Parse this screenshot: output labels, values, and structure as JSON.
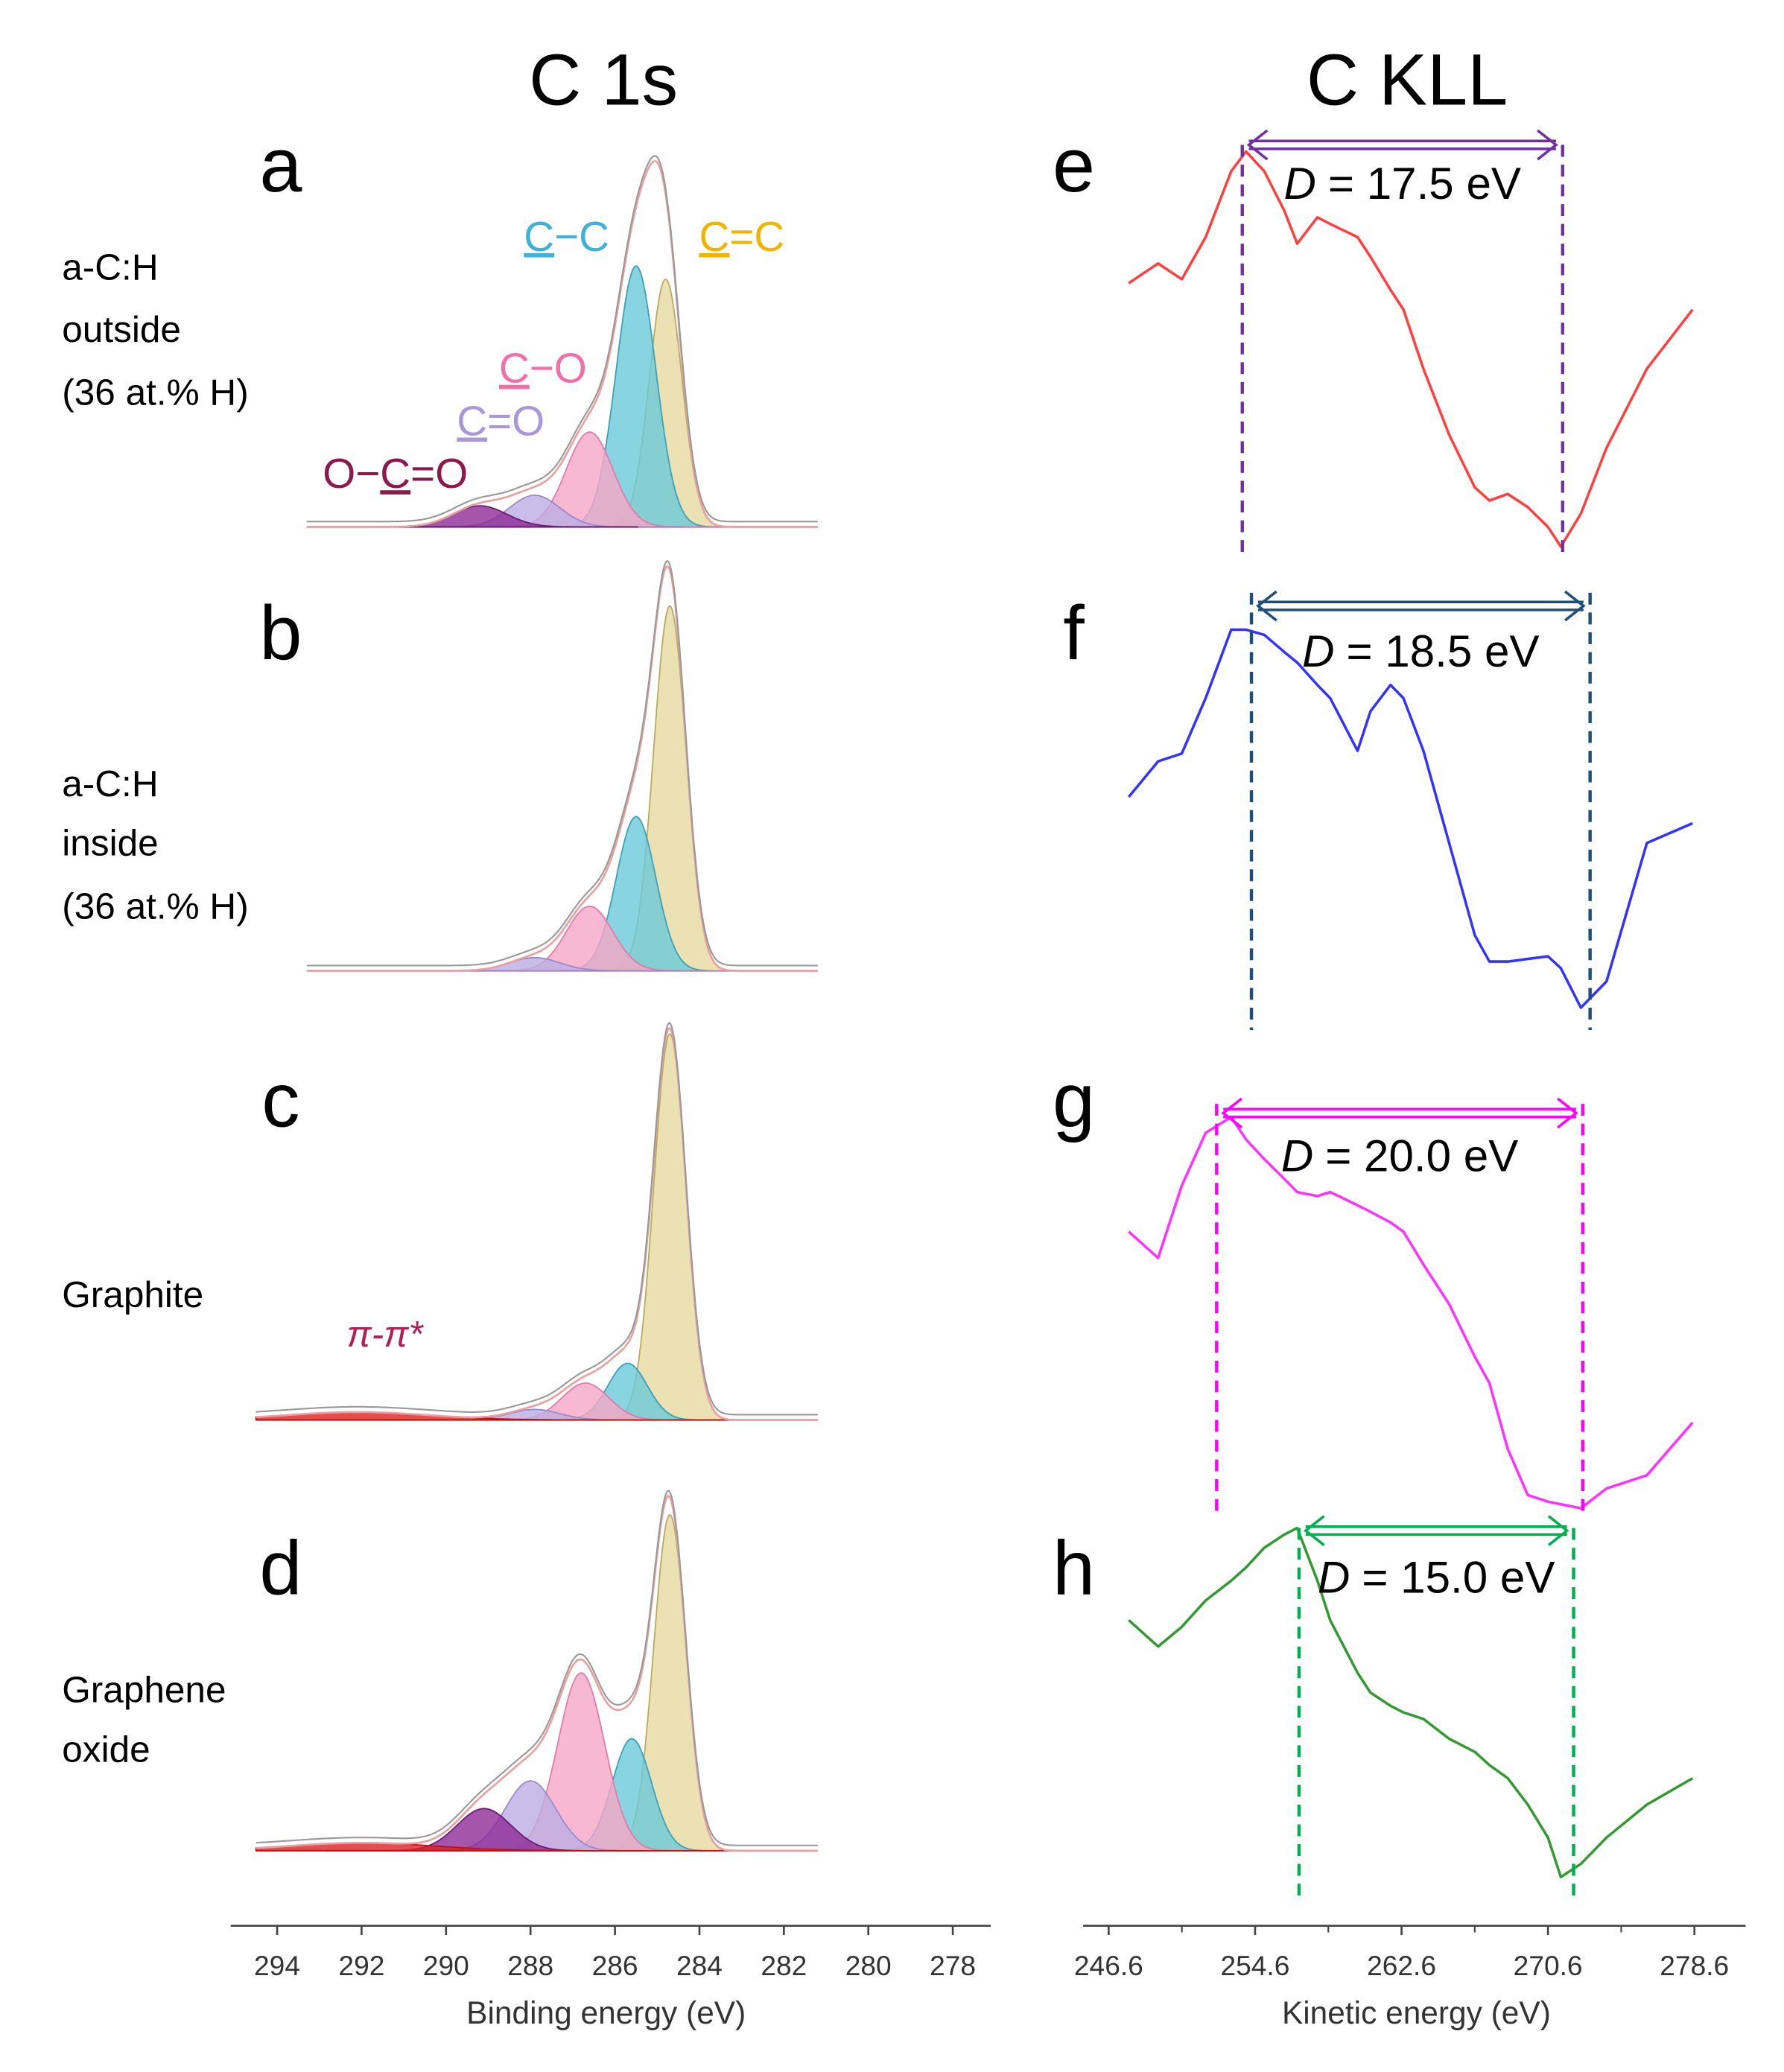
{
  "chart_data": [
    {
      "type": "xps-fit",
      "title": "C 1s",
      "xlabel": "Binding energy (eV)",
      "xlim": [
        295.1,
        277.1
      ],
      "xticks": [
        294,
        292,
        290,
        288,
        286,
        284,
        282,
        280,
        278
      ],
      "components": [
        {
          "name": "C=C",
          "color": "#e6d9a0",
          "edge": "#b8a860",
          "label_color": "#f0b400"
        },
        {
          "name": "C−C",
          "color": "#6cc9d9",
          "edge": "#3aa0b8",
          "label_color": "#3fb0d8"
        },
        {
          "name": "C−O",
          "color": "#f7a6c6",
          "edge": "#e07aa8",
          "label_color": "#f06fa8"
        },
        {
          "name": "C=O",
          "color": "#bcaee3",
          "edge": "#9a88cc",
          "label_color": "#a898d8"
        },
        {
          "name": "O−C=O",
          "color": "#8e2a96",
          "edge": "#6a1a70",
          "label_color": "#8b1a4a"
        },
        {
          "name": "π-π*",
          "color": "#e02020",
          "edge": "#c01010",
          "label_color": "#b02050"
        }
      ],
      "fwhm": [
        0.9,
        1.1,
        1.3,
        1.4,
        1.5,
        4.0
      ],
      "panels": [
        {
          "letter": "a",
          "sample": [
            "a-C:H",
            "outside",
            "(36 at.% H)"
          ],
          "xrange": [
            293.3,
            281.2
          ],
          "centers": [
            284.8,
            285.5,
            286.6,
            287.9,
            289.2,
            null
          ],
          "heights": [
            188,
            198,
            72,
            24,
            16,
            null
          ]
        },
        {
          "letter": "b",
          "sample": [
            "a-C:H",
            "inside",
            "(36 at.% H)"
          ],
          "xrange": [
            293.3,
            281.2
          ],
          "centers": [
            284.7,
            285.5,
            286.6,
            287.9,
            null,
            null
          ],
          "heights": [
            277,
            117,
            49,
            10,
            null,
            null
          ]
        },
        {
          "letter": "c",
          "sample": [
            "Graphite"
          ],
          "xrange": [
            294.5,
            281.2
          ],
          "centers": [
            284.7,
            285.7,
            286.7,
            287.9,
            null,
            292.1
          ],
          "heights": [
            293,
            43,
            28,
            8,
            null,
            6
          ]
        },
        {
          "letter": "d",
          "sample": [
            "Graphene",
            "oxide"
          ],
          "xrange": [
            294.5,
            281.2
          ],
          "centers": [
            284.7,
            285.6,
            286.8,
            288.0,
            289.1,
            292.0
          ],
          "heights": [
            255,
            85,
            135,
            53,
            32,
            6
          ]
        }
      ]
    },
    {
      "type": "line",
      "title": "C KLL",
      "xlabel": "Kinetic energy (eV)",
      "xlim": [
        245.2,
        281.4
      ],
      "xticks": [
        246.6,
        254.6,
        262.6,
        270.6,
        278.6
      ],
      "xminor": [
        250.6,
        258.6,
        266.6,
        274.6
      ],
      "panels": [
        {
          "letter": "e",
          "color": "#ff4040",
          "marker_color": "#7030a0",
          "x": [
            247.7,
            249.3,
            250.6,
            251.9,
            253.3,
            254.1,
            255.1,
            256.2,
            256.9,
            258.0,
            258.7,
            260.2,
            260.9,
            262.0,
            262.7,
            263.8,
            265.2,
            266.6,
            267.4,
            268.4,
            269.5,
            270.6,
            271.3,
            272.4,
            273.8,
            276.0,
            278.5
          ],
          "y": [
            205,
            220,
            208,
            240,
            290,
            305,
            290,
            260,
            235,
            255,
            250,
            240,
            225,
            200,
            185,
            140,
            90,
            50,
            40,
            45,
            35,
            20,
            5,
            30,
            80,
            140,
            185
          ],
          "spacing_symbol": "D",
          "spacing": {
            "value": 17.5,
            "label": "= 17.5 eV"
          },
          "spacing_x": [
            253.9,
            271.4
          ]
        },
        {
          "letter": "f",
          "color": "#3333ff",
          "marker_color": "#1f4e79",
          "x": [
            247.7,
            249.3,
            250.6,
            251.9,
            253.3,
            254.1,
            255.1,
            256.2,
            256.9,
            258.0,
            258.7,
            260.2,
            260.9,
            262.0,
            262.7,
            263.8,
            265.2,
            266.6,
            267.4,
            268.4,
            269.5,
            270.6,
            271.3,
            272.4,
            273.8,
            276.0,
            278.5
          ],
          "y": [
            165,
            192,
            198,
            240,
            292,
            292,
            288,
            275,
            267,
            250,
            240,
            200,
            230,
            250,
            240,
            200,
            130,
            60,
            40,
            40,
            42,
            44,
            35,
            5,
            25,
            130,
            145
          ],
          "spacing_symbol": "D",
          "spacing": {
            "value": 18.5,
            "label": "= 18.5 eV"
          },
          "spacing_x": [
            254.4,
            272.9
          ]
        },
        {
          "letter": "g",
          "color": "#ff33ff",
          "marker_color": "#ff00ff",
          "x": [
            247.7,
            249.3,
            250.6,
            251.9,
            253.3,
            254.1,
            255.1,
            256.2,
            256.9,
            258.0,
            258.7,
            260.2,
            260.9,
            262.0,
            262.7,
            263.8,
            265.2,
            266.6,
            267.4,
            268.4,
            269.5,
            270.6,
            271.3,
            272.4,
            273.8,
            276.0,
            278.5
          ],
          "y": [
            215,
            195,
            250,
            290,
            302,
            285,
            270,
            255,
            245,
            242,
            245,
            235,
            230,
            222,
            215,
            190,
            160,
            120,
            100,
            50,
            15,
            10,
            8,
            5,
            20,
            30,
            70
          ],
          "spacing_symbol": "D",
          "spacing": {
            "value": 20.0,
            "label": "= 20.0 eV"
          },
          "spacing_x": [
            252.5,
            272.5
          ]
        },
        {
          "letter": "h",
          "color": "#339933",
          "marker_color": "#00b050",
          "x": [
            247.7,
            249.3,
            250.6,
            251.9,
            253.3,
            254.1,
            255.1,
            256.2,
            256.9,
            258.0,
            258.7,
            260.2,
            260.9,
            262.0,
            262.7,
            263.8,
            265.2,
            266.6,
            267.4,
            268.4,
            269.5,
            270.6,
            271.3,
            272.4,
            273.8,
            276.0,
            278.5
          ],
          "y": [
            210,
            190,
            205,
            225,
            240,
            250,
            265,
            275,
            280,
            240,
            210,
            170,
            155,
            145,
            140,
            135,
            120,
            110,
            100,
            90,
            70,
            45,
            15,
            25,
            45,
            70,
            90
          ],
          "spacing_symbol": "D",
          "spacing": {
            "value": 15.0,
            "label": "= 15.0 eV"
          },
          "spacing_x": [
            257.0,
            272.0
          ]
        }
      ]
    }
  ]
}
